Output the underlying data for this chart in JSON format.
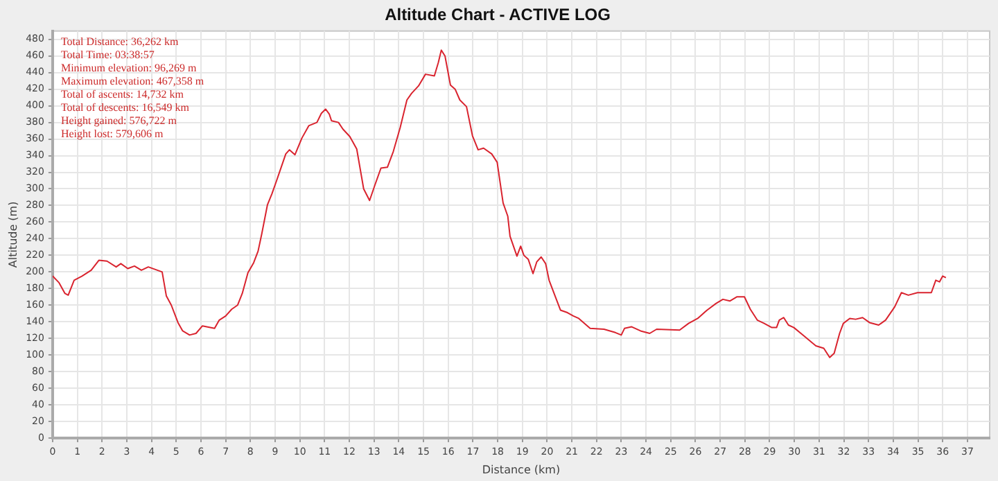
{
  "chart_data": {
    "type": "line",
    "title": "Altitude Chart - ACTIVE LOG",
    "xlabel": "Distance (km)",
    "ylabel": "Altitude (m)",
    "annotations": [
      "Total Distance: 36,262 km",
      "Total Time: 03:38:57",
      "Minimum elevation: 96,269 m",
      "Maximum elevation: 467,358 m",
      "Total of ascents: 14,732 km",
      "Total of descents: 16,549 km",
      "Height gained: 576,722 m",
      "Height lost: 579,606 m"
    ],
    "xlim": [
      0,
      37.9
    ],
    "xticks": [
      0,
      1,
      2,
      3,
      4,
      5,
      6,
      7,
      8,
      9,
      10,
      11,
      12,
      13,
      14,
      15,
      16,
      17,
      18,
      19,
      20,
      21,
      22,
      23,
      24,
      25,
      26,
      27,
      28,
      29,
      30,
      31,
      32,
      33,
      34,
      35,
      36,
      37
    ],
    "ylim": [
      0,
      490
    ],
    "yticks": [
      0,
      20,
      40,
      60,
      80,
      100,
      120,
      140,
      160,
      180,
      200,
      220,
      240,
      260,
      280,
      300,
      320,
      340,
      360,
      380,
      400,
      420,
      440,
      460,
      480
    ],
    "grid": true,
    "legend": false,
    "marker": "none",
    "line_style": "solid",
    "series": [
      {
        "color": "#d9232e",
        "x": [
          0,
          0.26,
          0.5,
          0.63,
          0.87,
          1.19,
          1.56,
          1.87,
          2.2,
          2.57,
          2.76,
          3.04,
          3.31,
          3.59,
          3.87,
          4.43,
          4.6,
          4.8,
          5.07,
          5.26,
          5.54,
          5.8,
          6.06,
          6.55,
          6.74,
          7.0,
          7.24,
          7.48,
          7.67,
          7.9,
          8.13,
          8.31,
          8.46,
          8.69,
          8.87,
          9.06,
          9.43,
          9.58,
          9.8,
          10.08,
          10.36,
          10.69,
          10.87,
          11.04,
          11.19,
          11.28,
          11.56,
          11.74,
          12.02,
          12.3,
          12.58,
          12.82,
          13.04,
          13.28,
          13.54,
          13.78,
          14.06,
          14.33,
          14.52,
          14.8,
          15.08,
          15.44,
          15.6,
          15.72,
          15.87,
          16.09,
          16.28,
          16.47,
          16.74,
          16.98,
          17.21,
          17.43,
          17.76,
          17.98,
          18.22,
          18.41,
          18.5,
          18.78,
          18.93,
          19.06,
          19.24,
          19.43,
          19.58,
          19.76,
          19.94,
          20.08,
          20.36,
          20.54,
          20.82,
          21.06,
          21.28,
          21.74,
          22.3,
          22.76,
          23.0,
          23.13,
          23.41,
          23.78,
          24.15,
          24.43,
          25.36,
          25.72,
          26.09,
          26.47,
          26.83,
          27.11,
          27.39,
          27.67,
          27.98,
          28.22,
          28.5,
          28.78,
          29.09,
          29.28,
          29.39,
          29.57,
          29.76,
          29.98,
          30.35,
          30.87,
          31.19,
          31.43,
          31.61,
          31.83,
          31.98,
          32.24,
          32.48,
          32.76,
          33.04,
          33.41,
          33.69,
          34.06,
          34.33,
          34.61,
          34.98,
          35.26,
          35.54,
          35.72,
          35.87,
          36.0,
          36.13
        ],
        "values": [
          195,
          187,
          174,
          172,
          190,
          195,
          202,
          214,
          213,
          206,
          210,
          204,
          207,
          202,
          206,
          200,
          171,
          160,
          139,
          129,
          124,
          126,
          135,
          132,
          142,
          147,
          155,
          160,
          174,
          199,
          211,
          225,
          246,
          281,
          294,
          310,
          342,
          347,
          341,
          361,
          376,
          380,
          391,
          396,
          390,
          382,
          380,
          372,
          363,
          348,
          300,
          286,
          305,
          325,
          326,
          345,
          374,
          407,
          415,
          424,
          438,
          436,
          452,
          467,
          460,
          425,
          420,
          407,
          399,
          364,
          347,
          349,
          342,
          332,
          283,
          267,
          243,
          219,
          231,
          220,
          215,
          198,
          212,
          218,
          210,
          190,
          168,
          154,
          151,
          147,
          144,
          132,
          131,
          127,
          124,
          132,
          134,
          129,
          126,
          131,
          130,
          138,
          144,
          154,
          162,
          167,
          165,
          170,
          170,
          155,
          142,
          138,
          133,
          133,
          142,
          145,
          136,
          133,
          124,
          111,
          108,
          97,
          102,
          126,
          138,
          144,
          143,
          145,
          139,
          136,
          142,
          158,
          175,
          172,
          175,
          175,
          175,
          190,
          188,
          195,
          193
        ]
      }
    ]
  }
}
